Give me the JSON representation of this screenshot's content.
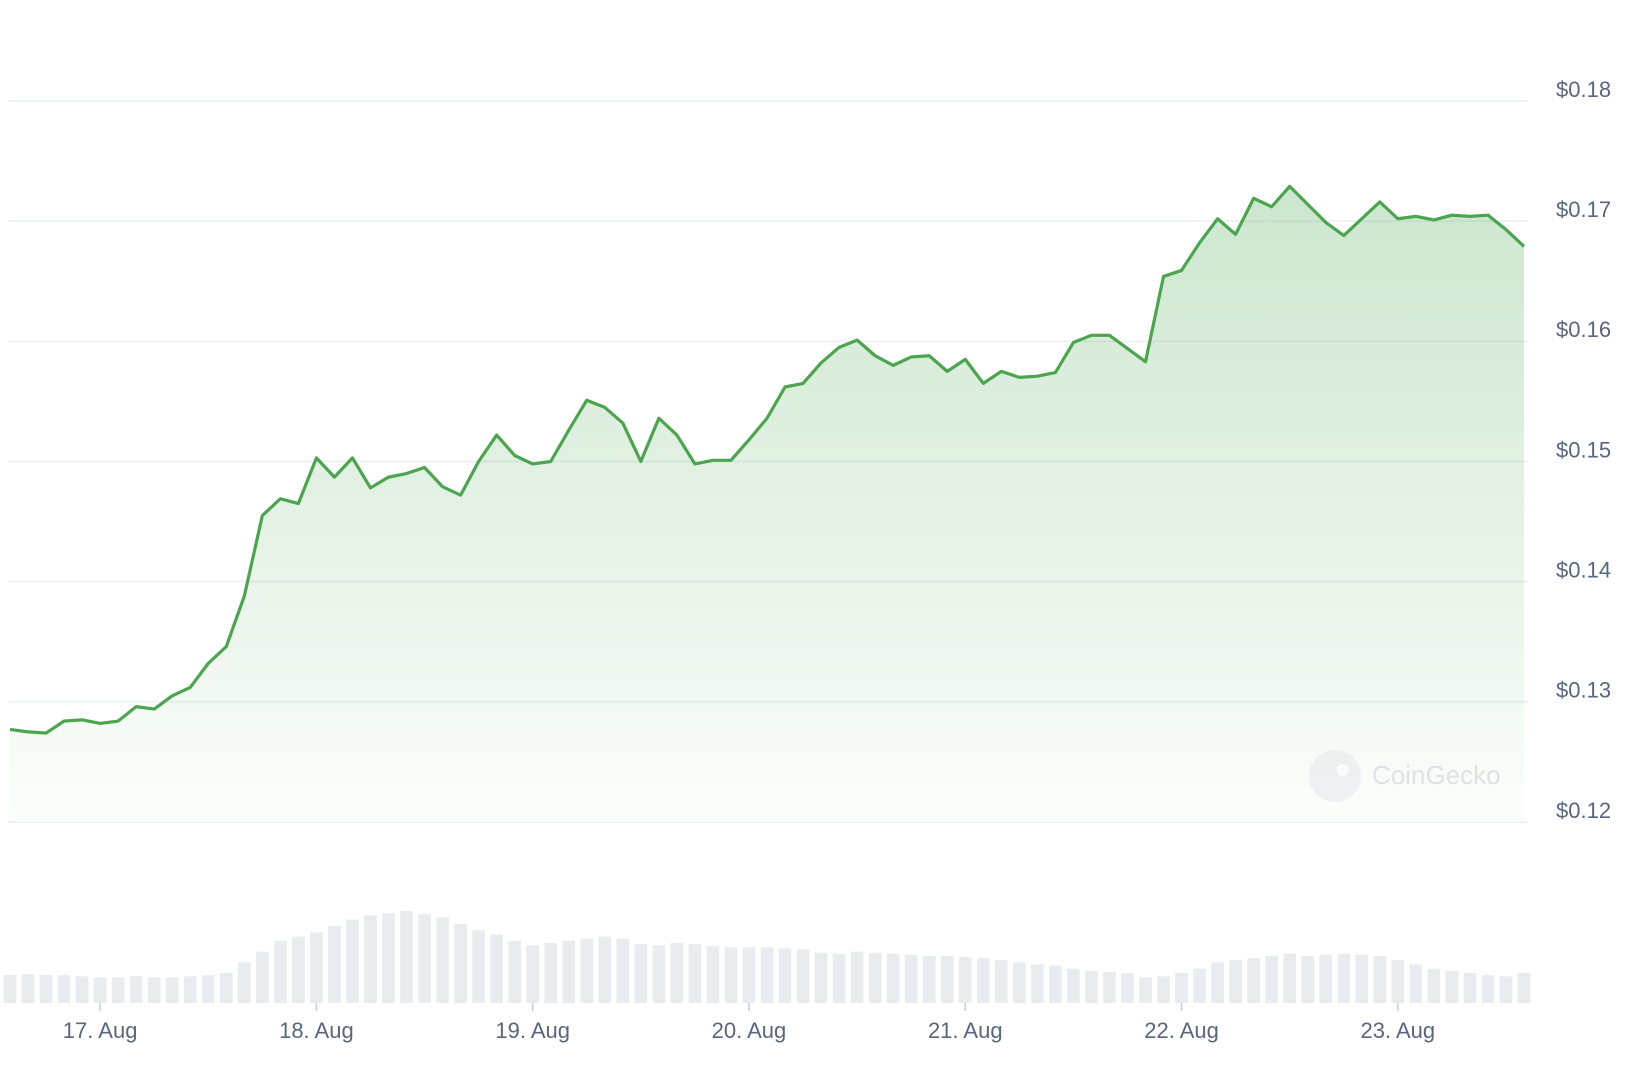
{
  "chart_data": {
    "type": "line",
    "color": "#4ba54f",
    "categories": [
      null,
      null,
      null,
      null,
      null,
      "17. Aug",
      null,
      null,
      null,
      null,
      null,
      null,
      null,
      null,
      null,
      null,
      null,
      "18. Aug",
      null,
      null,
      null,
      null,
      null,
      null,
      null,
      null,
      null,
      null,
      null,
      "19. Aug",
      null,
      null,
      null,
      null,
      null,
      null,
      null,
      null,
      null,
      null,
      null,
      "20. Aug",
      null,
      null,
      null,
      null,
      null,
      null,
      null,
      null,
      null,
      null,
      null,
      "21. Aug",
      null,
      null,
      null,
      null,
      null,
      null,
      null,
      null,
      null,
      null,
      null,
      "22. Aug",
      null,
      null,
      null,
      null,
      null,
      null,
      null,
      null,
      null,
      null,
      null,
      "23. Aug",
      null,
      null,
      null,
      null,
      null,
      null,
      null
    ],
    "values": [
      0.1277,
      0.1275,
      0.1274,
      0.1284,
      0.1285,
      0.1282,
      0.1284,
      0.1296,
      0.1294,
      0.1305,
      0.1312,
      0.1332,
      0.1346,
      0.1388,
      0.1455,
      0.1469,
      0.1465,
      0.1503,
      0.1487,
      0.1503,
      0.1478,
      0.1487,
      0.149,
      0.1495,
      0.1479,
      0.1472,
      0.15,
      0.1522,
      0.1505,
      0.1498,
      0.15,
      0.1526,
      0.1551,
      0.1545,
      0.1532,
      0.15,
      0.1536,
      0.1522,
      0.1498,
      0.1501,
      0.1501,
      0.1518,
      0.1536,
      0.1562,
      0.1565,
      0.1582,
      0.1595,
      0.1601,
      0.1588,
      0.158,
      0.1587,
      0.1588,
      0.1575,
      0.1585,
      0.1565,
      0.1575,
      0.157,
      0.1571,
      0.1574,
      0.1599,
      0.1605,
      0.1605,
      0.1594,
      0.1583,
      0.1654,
      0.1659,
      0.1682,
      0.1702,
      0.1689,
      0.1719,
      0.1712,
      0.1729,
      0.1714,
      0.1699,
      0.1688,
      0.1702,
      0.1716,
      0.1702,
      0.1704,
      0.1701,
      0.1705,
      0.1704,
      0.1705,
      0.1693,
      0.1679
    ],
    "volume": [
      26,
      27,
      26,
      26,
      25,
      24,
      24,
      25,
      24,
      24,
      25,
      26,
      28,
      38,
      48,
      58,
      62,
      66,
      72,
      78,
      82,
      84,
      86,
      83,
      80,
      74,
      68,
      64,
      58,
      54,
      56,
      58,
      60,
      62,
      60,
      55,
      54,
      56,
      55,
      53,
      52,
      52,
      52,
      51,
      50,
      47,
      46,
      48,
      47,
      46,
      45,
      44,
      44,
      43,
      42,
      40,
      38,
      36,
      35,
      32,
      30,
      29,
      28,
      24,
      25,
      28,
      32,
      38,
      40,
      42,
      44,
      46,
      44,
      45,
      46,
      45,
      44,
      40,
      36,
      32,
      30,
      28,
      26,
      25,
      28
    ],
    "ylim": [
      0.12,
      0.18
    ],
    "yticks": [
      {
        "value": 0.12,
        "label": "$0.12"
      },
      {
        "value": 0.13,
        "label": "$0.13"
      },
      {
        "value": 0.14,
        "label": "$0.14"
      },
      {
        "value": 0.15,
        "label": "$0.15"
      },
      {
        "value": 0.16,
        "label": "$0.16"
      },
      {
        "value": 0.17,
        "label": "$0.17"
      },
      {
        "value": 0.18,
        "label": "$0.18"
      }
    ],
    "grid": true,
    "watermark": "CoinGecko"
  }
}
